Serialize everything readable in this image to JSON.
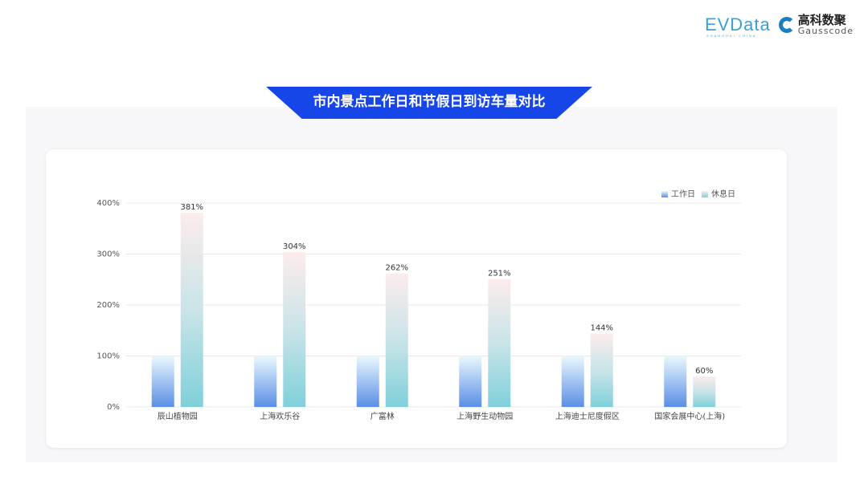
{
  "logos": {
    "evdata": "EVData",
    "evdata_sub": "SHANGHAI CHINA",
    "gauss_cn": "高科数聚",
    "gauss_en": "Gausscode"
  },
  "banner": {
    "title": "市内景点工作日和节假日到访车量对比"
  },
  "chart_data": {
    "type": "bar",
    "categories": [
      "辰山植物园",
      "上海欢乐谷",
      "广富林",
      "上海野生动物园",
      "上海迪士尼度假区",
      "国家会展中心(上海)"
    ],
    "series": [
      {
        "name": "工作日",
        "values": [
          100,
          100,
          100,
          100,
          100,
          100
        ],
        "color": "#5b8ee6"
      },
      {
        "name": "休息日",
        "values": [
          381,
          304,
          262,
          251,
          144,
          60
        ],
        "color": "#7fd0da"
      }
    ],
    "data_labels": [
      "381%",
      "304%",
      "262%",
      "251%",
      "144%",
      "60%"
    ],
    "yticks": [
      "0%",
      "100%",
      "200%",
      "300%",
      "400%"
    ],
    "ylim": [
      0,
      400
    ],
    "grid": true,
    "legend": "top-right"
  }
}
